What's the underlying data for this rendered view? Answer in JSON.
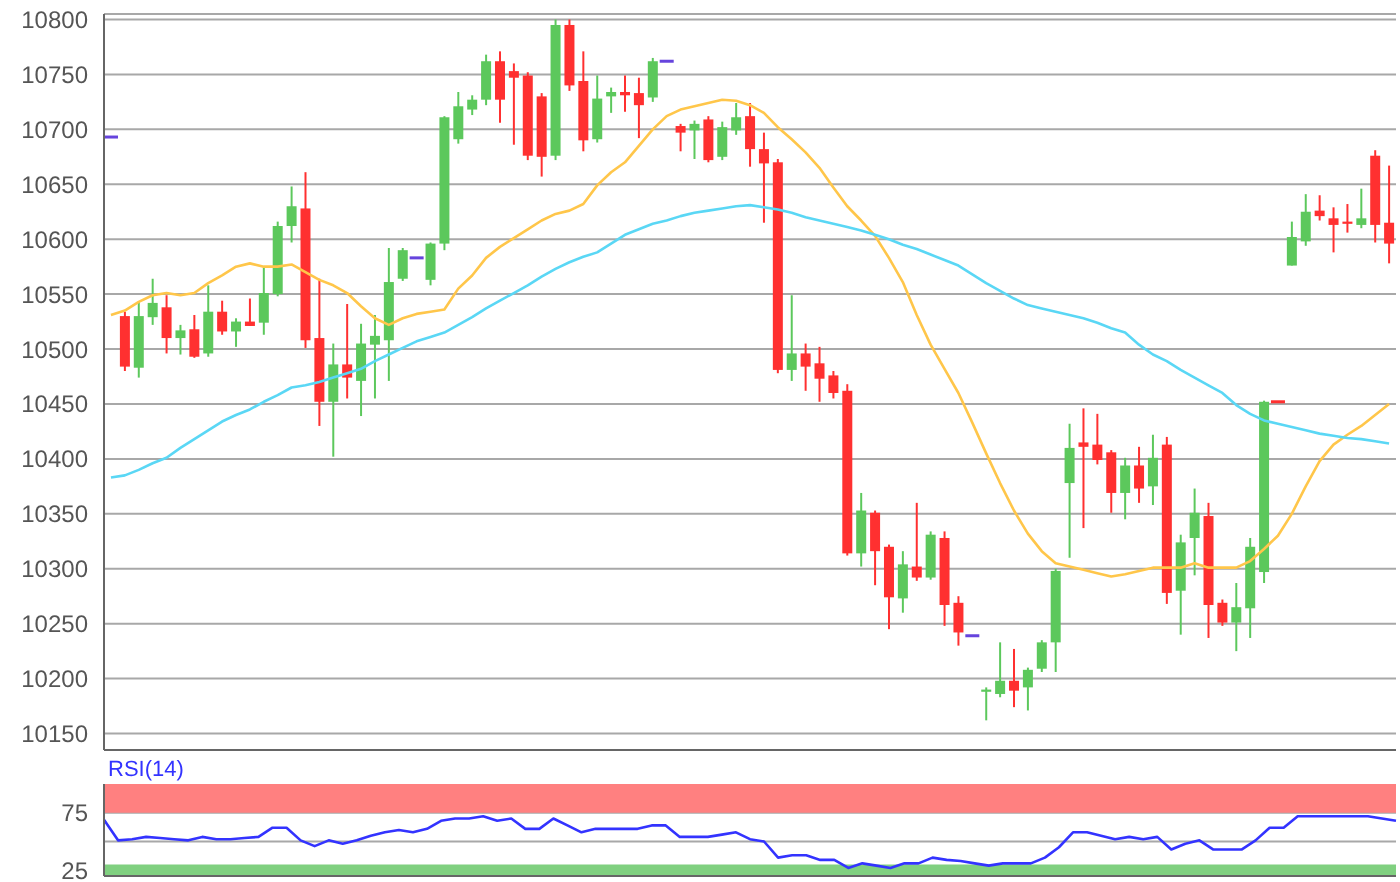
{
  "chart_data": [
    {
      "type": "candlestick",
      "categories": [
        null,
        null,
        null,
        null,
        null,
        null,
        null,
        null,
        null,
        null,
        null,
        null,
        null,
        null,
        null,
        null,
        null,
        null,
        null,
        null,
        null,
        null,
        null,
        null,
        null,
        null,
        null,
        null,
        null,
        null,
        null,
        null,
        null,
        null,
        null,
        null,
        null,
        null,
        null,
        null,
        null,
        null,
        null,
        null,
        null,
        null,
        null,
        null,
        null,
        null,
        null,
        null,
        null,
        null,
        null,
        null,
        null,
        null,
        null,
        null,
        null,
        null,
        null,
        null,
        null,
        null,
        null,
        null,
        null,
        null,
        null,
        null,
        null,
        null,
        null,
        null,
        null,
        null,
        null,
        null,
        null,
        null,
        null,
        null,
        null,
        null,
        null,
        null,
        null,
        null,
        null,
        null,
        null
      ],
      "ohlc": [
        [
          10693,
          10693,
          10693,
          10693
        ],
        [
          10530,
          10534,
          10480,
          10484
        ],
        [
          10483,
          10543,
          10474,
          10530
        ],
        [
          10529,
          10564,
          10522,
          10542
        ],
        [
          10538,
          10549,
          10496,
          10510
        ],
        [
          10510,
          10522,
          10495,
          10517
        ],
        [
          10518,
          10531,
          10492,
          10493
        ],
        [
          10496,
          10558,
          10493,
          10534
        ],
        [
          10534,
          10544,
          10513,
          10516
        ],
        [
          10516,
          10528,
          10502,
          10525
        ],
        [
          10525,
          10546,
          10521,
          10521
        ],
        [
          10524,
          10575,
          10513,
          10551
        ],
        [
          10550,
          10616,
          10548,
          10612
        ],
        [
          10612,
          10648,
          10597,
          10630
        ],
        [
          10628,
          10661,
          10501,
          10508
        ],
        [
          10510,
          10564,
          10430,
          10452
        ],
        [
          10452,
          10505,
          10402,
          10486
        ],
        [
          10486,
          10541,
          10455,
          10474
        ],
        [
          10471,
          10523,
          10439,
          10505
        ],
        [
          10504,
          10531,
          10455,
          10512
        ],
        [
          10508,
          10592,
          10471,
          10561
        ],
        [
          10564,
          10592,
          10562,
          10590
        ],
        [
          10583,
          10583,
          10583,
          10583
        ],
        [
          10563,
          10597,
          10558,
          10596
        ],
        [
          10596,
          10712,
          10590,
          10711
        ],
        [
          10691,
          10734,
          10687,
          10721
        ],
        [
          10718,
          10731,
          10713,
          10727
        ],
        [
          10727,
          10768,
          10722,
          10762
        ],
        [
          10762,
          10771,
          10706,
          10727
        ],
        [
          10753,
          10760,
          10686,
          10747
        ],
        [
          10749,
          10752,
          10672,
          10676
        ],
        [
          10730,
          10733,
          10657,
          10675
        ],
        [
          10676,
          10800,
          10672,
          10795
        ],
        [
          10795,
          10800,
          10735,
          10740
        ],
        [
          10744,
          10771,
          10680,
          10690
        ],
        [
          10691,
          10749,
          10688,
          10728
        ],
        [
          10730,
          10738,
          10715,
          10734
        ],
        [
          10734,
          10749,
          10716,
          10731
        ],
        [
          10733,
          10747,
          10692,
          10722
        ],
        [
          10729,
          10765,
          10725,
          10762
        ],
        [
          10762,
          10762,
          10762,
          10762
        ],
        [
          10703,
          10705,
          10680,
          10697
        ],
        [
          10699,
          10708,
          10673,
          10705
        ],
        [
          10709,
          10712,
          10670,
          10672
        ],
        [
          10675,
          10707,
          10672,
          10702
        ],
        [
          10699,
          10724,
          10695,
          10711
        ],
        [
          10712,
          10724,
          10666,
          10682
        ],
        [
          10682,
          10697,
          10615,
          10669
        ],
        [
          10670,
          10673,
          10478,
          10481
        ],
        [
          10481,
          10549,
          10471,
          10496
        ],
        [
          10496,
          10505,
          10462,
          10484
        ],
        [
          10487,
          10502,
          10452,
          10473
        ],
        [
          10476,
          10480,
          10455,
          10460
        ],
        [
          10462,
          10468,
          10312,
          10314
        ],
        [
          10314,
          10369,
          10302,
          10353
        ],
        [
          10351,
          10353,
          10285,
          10316
        ],
        [
          10320,
          10322,
          10245,
          10274
        ],
        [
          10273,
          10316,
          10260,
          10304
        ],
        [
          10302,
          10360,
          10289,
          10292
        ],
        [
          10292,
          10334,
          10290,
          10331
        ],
        [
          10328,
          10334,
          10248,
          10267
        ],
        [
          10269,
          10275,
          10230,
          10242
        ],
        [
          10239,
          10239,
          10239,
          10239
        ],
        [
          10188,
          10192,
          10162,
          10190
        ],
        [
          10186,
          10233,
          10183,
          10198
        ],
        [
          10198,
          10227,
          10174,
          10189
        ],
        [
          10192,
          10210,
          10171,
          10208
        ],
        [
          10209,
          10235,
          10206,
          10233
        ],
        [
          10233,
          10300,
          10206,
          10298
        ],
        [
          10378,
          10432,
          10310,
          10410
        ],
        [
          10415,
          10446,
          10337,
          10411
        ],
        [
          10413,
          10441,
          10395,
          10399
        ],
        [
          10406,
          10408,
          10351,
          10369
        ],
        [
          10369,
          10401,
          10345,
          10394
        ],
        [
          10394,
          10411,
          10360,
          10373
        ],
        [
          10375,
          10422,
          10358,
          10401
        ],
        [
          10413,
          10420,
          10268,
          10278
        ],
        [
          10280,
          10331,
          10240,
          10324
        ],
        [
          10328,
          10373,
          10294,
          10351
        ],
        [
          10348,
          10360,
          10237,
          10267
        ],
        [
          10269,
          10272,
          10248,
          10251
        ],
        [
          10251,
          10287,
          10225,
          10265
        ],
        [
          10264,
          10328,
          10237,
          10320
        ],
        [
          10297,
          10453,
          10287,
          10452
        ],
        [
          10452,
          10452,
          10452,
          10452
        ],
        [
          10576,
          10616,
          10576,
          10602
        ],
        [
          10598,
          10641,
          10594,
          10625
        ],
        [
          10626,
          10640,
          10617,
          10621
        ],
        [
          10619,
          10629,
          10588,
          10613
        ],
        [
          10616,
          10632,
          10606,
          10614
        ],
        [
          10613,
          10646,
          10610,
          10619
        ],
        [
          10676,
          10681,
          10597,
          10613
        ],
        [
          10615,
          10667,
          10578,
          10596
        ]
      ],
      "colors": [
        "#6644dd",
        "#ff3030",
        "#5cc85c",
        "#5cc85c",
        "#ff3030",
        "#5cc85c",
        "#ff3030",
        "#5cc85c",
        "#ff3030",
        "#5cc85c",
        "#ff3030",
        "#5cc85c",
        "#5cc85c",
        "#5cc85c",
        "#ff3030",
        "#ff3030",
        "#5cc85c",
        "#ff3030",
        "#5cc85c",
        "#5cc85c",
        "#5cc85c",
        "#5cc85c",
        "#6644dd",
        "#5cc85c",
        "#5cc85c",
        "#5cc85c",
        "#5cc85c",
        "#5cc85c",
        "#ff3030",
        "#ff3030",
        "#ff3030",
        "#ff3030",
        "#5cc85c",
        "#ff3030",
        "#ff3030",
        "#5cc85c",
        "#5cc85c",
        "#ff3030",
        "#ff3030",
        "#5cc85c",
        "#6644dd",
        "#ff3030",
        "#5cc85c",
        "#ff3030",
        "#5cc85c",
        "#5cc85c",
        "#ff3030",
        "#ff3030",
        "#ff3030",
        "#5cc85c",
        "#ff3030",
        "#ff3030",
        "#ff3030",
        "#ff3030",
        "#5cc85c",
        "#ff3030",
        "#ff3030",
        "#5cc85c",
        "#ff3030",
        "#5cc85c",
        "#ff3030",
        "#ff3030",
        "#6644dd",
        "#5cc85c",
        "#5cc85c",
        "#ff3030",
        "#5cc85c",
        "#5cc85c",
        "#5cc85c",
        "#5cc85c",
        "#ff3030",
        "#ff3030",
        "#ff3030",
        "#5cc85c",
        "#ff3030",
        "#5cc85c",
        "#ff3030",
        "#5cc85c",
        "#5cc85c",
        "#ff3030",
        "#ff3030",
        "#5cc85c",
        "#5cc85c",
        "#5cc85c",
        "#ff3030",
        "#5cc85c",
        "#5cc85c",
        "#ff3030",
        "#ff3030",
        "#ff3030",
        "#5cc85c",
        "#ff3030",
        "#ff3030"
      ],
      "series": [
        {
          "type": "line",
          "color": "#ffc64a",
          "values": [
            10531,
            10535,
            10543,
            10549,
            10551,
            10549,
            10551,
            10560,
            10567,
            10575,
            10578,
            10575,
            10575,
            10577,
            10570,
            10563,
            10558,
            10551,
            10539,
            10528,
            10522,
            10528,
            10532,
            10534,
            10536,
            10555,
            10567,
            10583,
            10593,
            10601,
            10609,
            10617,
            10623,
            10626,
            10632,
            10649,
            10661,
            10670,
            10685,
            10700,
            10712,
            10718,
            10721,
            10724,
            10727,
            10726,
            10722,
            10715,
            10702,
            10691,
            10679,
            10665,
            10647,
            10630,
            10617,
            10603,
            10583,
            10561,
            10531,
            10504,
            10482,
            10460,
            10433,
            10405,
            10378,
            10353,
            10332,
            10316,
            10305,
            10302,
            10299,
            10296,
            10293,
            10295,
            10298,
            10301,
            10301,
            10301,
            10305,
            10301,
            10301,
            10301,
            10307,
            10318,
            10330,
            10350,
            10375,
            10398,
            10413,
            10422,
            10430,
            10440,
            10450
          ]
        },
        {
          "type": "line",
          "color": "#5ad7f5",
          "values": [
            10383,
            10385,
            10390,
            10396,
            10401,
            10410,
            10418,
            10426,
            10434,
            10440,
            10445,
            10452,
            10458,
            10465,
            10467,
            10470,
            10474,
            10478,
            10482,
            10489,
            10495,
            10501,
            10507,
            10511,
            10515,
            10522,
            10529,
            10537,
            10544,
            10551,
            10558,
            10566,
            10573,
            10579,
            10584,
            10588,
            10596,
            10604,
            10609,
            10614,
            10617,
            10621,
            10624,
            10626,
            10628,
            10630,
            10631,
            10629,
            10627,
            10624,
            10620,
            10617,
            10614,
            10611,
            10608,
            10604,
            10600,
            10595,
            10591,
            10586,
            10581,
            10576,
            10568,
            10560,
            10553,
            10546,
            10540,
            10537,
            10534,
            10531,
            10528,
            10524,
            10519,
            10515,
            10504,
            10495,
            10489,
            10481,
            10474,
            10467,
            10460,
            10449,
            10441,
            10435,
            10432,
            10429,
            10426,
            10423,
            10421,
            10419,
            10418,
            10416,
            10414
          ]
        }
      ],
      "ylim": [
        10135,
        10805
      ],
      "yticks": [
        10150,
        10200,
        10250,
        10300,
        10350,
        10400,
        10450,
        10500,
        10550,
        10600,
        10650,
        10700,
        10750,
        10800
      ],
      "grid": "y",
      "tick_labels": "y"
    },
    {
      "type": "line",
      "title": "RSI(14)",
      "categories": [
        null,
        null,
        null,
        null,
        null,
        null,
        null,
        null,
        null,
        null,
        null,
        null,
        null,
        null,
        null,
        null,
        null,
        null,
        null,
        null,
        null,
        null,
        null,
        null,
        null,
        null,
        null,
        null,
        null,
        null,
        null,
        null,
        null,
        null,
        null,
        null,
        null,
        null,
        null,
        null,
        null,
        null,
        null,
        null,
        null,
        null,
        null,
        null,
        null,
        null,
        null,
        null,
        null,
        null,
        null,
        null,
        null,
        null,
        null,
        null,
        null,
        null,
        null,
        null,
        null,
        null,
        null,
        null,
        null,
        null,
        null,
        null,
        null,
        null,
        null,
        null,
        null,
        null,
        null,
        null,
        null,
        null,
        null,
        null,
        null,
        null,
        null,
        null,
        null,
        null,
        null,
        null,
        null
      ],
      "series": [
        {
          "color": "#3333ff",
          "values": [
            69,
            51,
            52,
            54,
            53,
            52,
            51,
            54,
            52,
            52,
            53,
            54,
            62,
            62,
            51,
            46,
            51,
            48,
            51,
            55,
            58,
            60,
            58,
            61,
            68,
            70,
            70,
            72,
            68,
            70,
            61,
            61,
            70,
            64,
            58,
            61,
            61,
            61,
            61,
            64,
            64,
            54,
            54,
            54,
            56,
            58,
            52,
            50,
            36,
            38,
            38,
            34,
            34,
            27,
            31,
            29,
            27,
            31,
            31,
            36,
            34,
            33,
            31,
            29,
            31,
            31,
            31,
            36,
            45,
            58,
            58,
            55,
            52,
            54,
            52,
            54,
            43,
            48,
            51,
            43,
            43,
            43,
            51,
            62,
            62,
            72,
            72,
            72,
            72,
            72,
            72,
            70,
            68
          ]
        }
      ],
      "ylim": [
        20,
        100
      ],
      "yticks": [
        25,
        {
          "value": 50,
          "label": null
        },
        75
      ],
      "grid": "y",
      "tick_labels": "y",
      "bands": [
        {
          "axis": "y",
          "from": 75,
          "to": 100,
          "color": "#ff8080"
        },
        {
          "axis": "y",
          "from": 20,
          "to": 30,
          "color": "#80d080"
        }
      ]
    }
  ]
}
